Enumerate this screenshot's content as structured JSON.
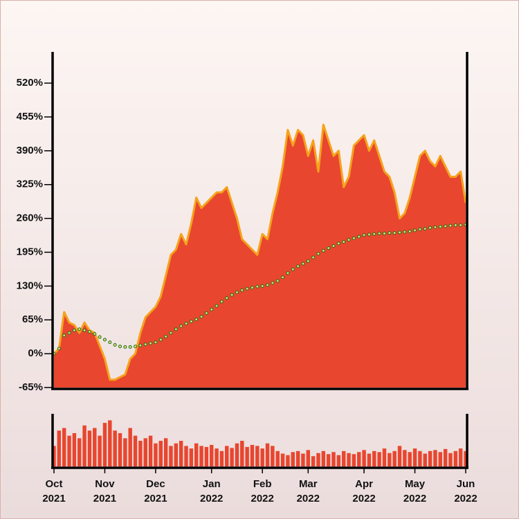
{
  "chart_data": [
    {
      "type": "area",
      "categories": [
        "Oct 2021",
        null,
        null,
        null,
        null,
        null,
        null,
        null,
        null,
        null,
        "Nov 2021",
        null,
        null,
        null,
        null,
        null,
        null,
        null,
        null,
        null,
        "Dec 2021",
        null,
        null,
        null,
        null,
        null,
        null,
        null,
        null,
        null,
        null,
        "Jan 2022",
        null,
        null,
        null,
        null,
        null,
        null,
        null,
        null,
        null,
        "Feb 2022",
        null,
        null,
        null,
        null,
        null,
        null,
        null,
        null,
        "Mar 2022",
        null,
        null,
        null,
        null,
        null,
        null,
        null,
        null,
        null,
        null,
        "Apr 2022",
        null,
        null,
        null,
        null,
        null,
        null,
        null,
        null,
        null,
        "May 2022",
        null,
        null,
        null,
        null,
        null,
        null,
        null,
        null,
        null,
        "Jun 2022"
      ],
      "series": [
        {
          "color": "#e8462f",
          "edge_color": "#f6a21b",
          "values": [
            0,
            10,
            80,
            60,
            55,
            40,
            60,
            45,
            40,
            15,
            -10,
            -50,
            -50,
            -45,
            -40,
            -10,
            0,
            40,
            70,
            80,
            90,
            110,
            150,
            190,
            200,
            230,
            210,
            250,
            300,
            280,
            290,
            300,
            310,
            310,
            320,
            290,
            260,
            220,
            210,
            200,
            190,
            230,
            220,
            270,
            310,
            360,
            430,
            400,
            430,
            420,
            380,
            410,
            350,
            440,
            410,
            380,
            390,
            320,
            340,
            400,
            410,
            420,
            390,
            410,
            380,
            350,
            340,
            310,
            260,
            270,
            300,
            340,
            380,
            390,
            370,
            360,
            380,
            360,
            340,
            340,
            350,
            290
          ]
        },
        {
          "type": "scatter",
          "color": "#1f6b1f",
          "values": [
            0,
            10,
            35,
            40,
            45,
            47,
            45,
            42,
            38,
            32,
            27,
            22,
            17,
            14,
            13,
            13,
            14,
            16,
            18,
            20,
            22,
            27,
            33,
            40,
            47,
            53,
            58,
            62,
            66,
            71,
            78,
            85,
            92,
            100,
            107,
            113,
            118,
            122,
            125,
            127,
            129,
            130,
            132,
            136,
            140,
            147,
            155,
            162,
            168,
            173,
            178,
            185,
            192,
            198,
            203,
            207,
            212,
            215,
            219,
            222,
            225,
            228,
            229,
            230,
            231,
            231,
            232,
            232,
            233,
            234,
            235,
            237,
            239,
            240,
            242,
            243,
            244,
            245,
            246,
            247,
            247,
            248
          ]
        }
      ],
      "ylim": [
        -65,
        580
      ],
      "yticks": [
        {
          "value": -65,
          "label": "-65%"
        },
        {
          "value": 0,
          "label": "0%"
        },
        {
          "value": 65,
          "label": "65%"
        },
        {
          "value": 130,
          "label": "130%"
        },
        {
          "value": 195,
          "label": "195%"
        },
        {
          "value": 260,
          "label": "260%"
        },
        {
          "value": 325,
          "label": "325%"
        },
        {
          "value": 390,
          "label": "390%"
        },
        {
          "value": 455,
          "label": "455%"
        },
        {
          "value": 520,
          "label": "520%"
        }
      ]
    },
    {
      "type": "bar",
      "color": "#e8462f",
      "ylim": [
        0,
        100
      ],
      "values": [
        40,
        70,
        75,
        60,
        65,
        55,
        80,
        70,
        75,
        60,
        85,
        90,
        70,
        65,
        55,
        75,
        60,
        50,
        55,
        60,
        45,
        50,
        55,
        40,
        45,
        50,
        40,
        35,
        45,
        40,
        38,
        42,
        35,
        30,
        40,
        36,
        45,
        50,
        38,
        42,
        40,
        35,
        45,
        40,
        30,
        25,
        22,
        28,
        30,
        25,
        32,
        20,
        26,
        30,
        24,
        28,
        22,
        30,
        26,
        24,
        28,
        32,
        25,
        30,
        28,
        35,
        26,
        30,
        40,
        32,
        28,
        35,
        30,
        25,
        30,
        32,
        28,
        34,
        26,
        30,
        35,
        30
      ]
    }
  ]
}
